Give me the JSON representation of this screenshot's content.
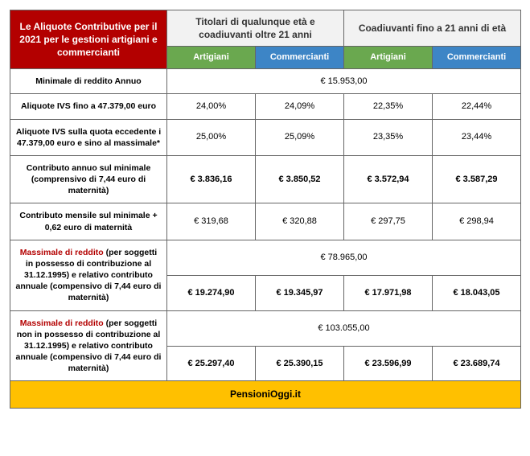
{
  "header": {
    "title": "Le Aliquote Contributive per il 2021 per le gestioni artigiani e commercianti",
    "group1": "Titolari di qualunque età e coadiuvanti oltre 21 anni",
    "group2": "Coadiuvanti fino a 21 anni di età",
    "sub_artigiani": "Artigiani",
    "sub_commercianti": "Commercianti"
  },
  "rows": {
    "r0": {
      "label": "Minimale di reddito Annuo",
      "span": "€ 15.953,00"
    },
    "r1": {
      "label": "Aliquote IVS fino a 47.379,00 euro",
      "c1": "24,00%",
      "c2": "24,09%",
      "c3": "22,35%",
      "c4": "22,44%"
    },
    "r2": {
      "label": "Aliquote IVS sulla quota eccedente i 47.379,00 euro e sino al massimale*",
      "c1": "25,00%",
      "c2": "25,09%",
      "c3": "23,35%",
      "c4": "23,44%"
    },
    "r3": {
      "label": "Contributo annuo sul minimale (comprensivo di 7,44 euro di maternità)",
      "c1": "€ 3.836,16",
      "c2": "€ 3.850,52",
      "c3": "€ 3.572,94",
      "c4": "€ 3.587,29"
    },
    "r4": {
      "label": "Contributo mensile sul minimale + 0,62 euro di maternità",
      "c1": "€ 319,68",
      "c2": "€ 320,88",
      "c3": "€ 297,75",
      "c4": "€ 298,94"
    },
    "r5": {
      "label_red": "Massimale di reddito",
      "label_rest": " (per soggetti in possesso di contribuzione al 31.12.1995) e relativo contributo annuale (compensivo di 7,44 euro di maternità)",
      "span": "€ 78.965,00",
      "c1": "€ 19.274,90",
      "c2": "€ 19.345,97",
      "c3": "€ 17.971,98",
      "c4": "€ 18.043,05"
    },
    "r6": {
      "label_red": "Massimale di reddito",
      "label_rest": " (per soggetti non in possesso di contribuzione al 31.12.1995) e relativo contributo annuale (compensivo di 7,44 euro di maternità)",
      "span": "€ 103.055,00",
      "c1": "€ 25.297,40",
      "c2": "€ 25.390,15",
      "c3": "€ 23.596,99",
      "c4": "€ 23.689,74"
    }
  },
  "footer": "PensioniOggi.it"
}
